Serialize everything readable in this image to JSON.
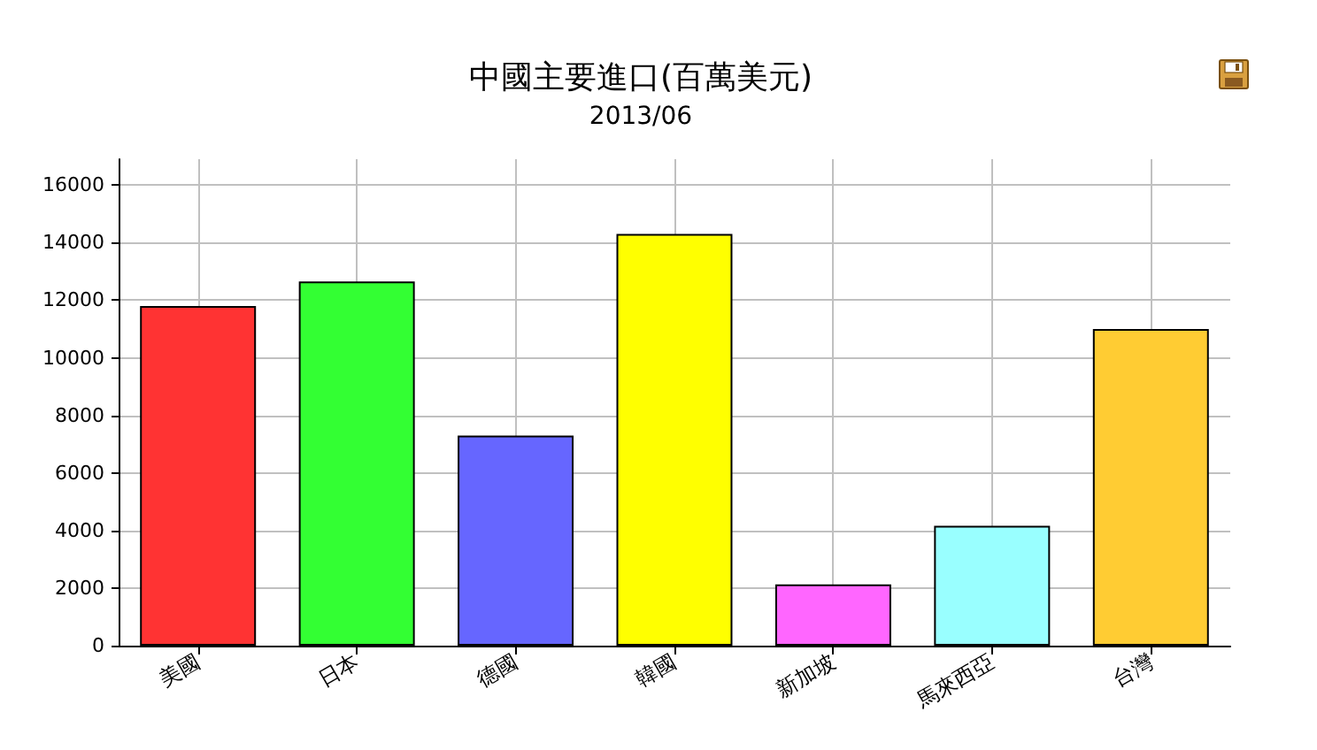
{
  "chart_data": {
    "type": "bar",
    "title": "中國主要進口(百萬美元)",
    "subtitle": "2013/06",
    "categories": [
      "美國",
      "日本",
      "德國",
      "韓國",
      "新加坡",
      "馬來西亞",
      "台灣"
    ],
    "values": [
      11800,
      12650,
      7300,
      14300,
      2130,
      4160,
      11000
    ],
    "colors": [
      "#ff3333",
      "#33ff33",
      "#6666ff",
      "#ffff00",
      "#ff66ff",
      "#99ffff",
      "#ffcc33"
    ],
    "ylim": [
      0,
      16900
    ],
    "yticks": [
      0,
      2000,
      4000,
      6000,
      8000,
      10000,
      12000,
      14000,
      16000
    ],
    "grid": true
  }
}
